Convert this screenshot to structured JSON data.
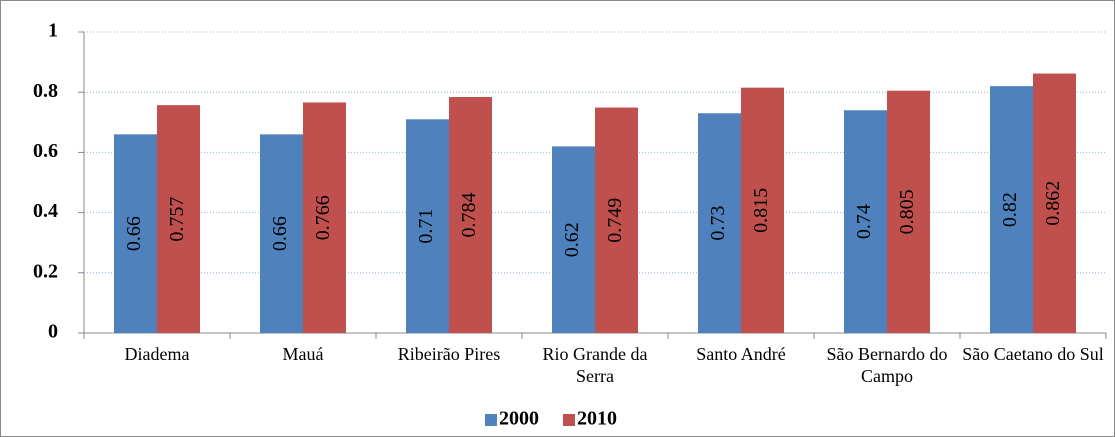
{
  "chart_data": {
    "type": "bar",
    "categories": [
      "Diadema",
      "Mauá",
      "Ribeirão Pires",
      "Rio Grande da Serra",
      "Santo André",
      "São Bernardo do Campo",
      "São Caetano do Sul"
    ],
    "series": [
      {
        "name": "2000",
        "color": "#4f81bd",
        "values": [
          0.66,
          0.66,
          0.71,
          0.62,
          0.73,
          0.74,
          0.82
        ]
      },
      {
        "name": "2010",
        "color": "#c0504d",
        "values": [
          0.757,
          0.766,
          0.784,
          0.749,
          0.815,
          0.805,
          0.862
        ]
      }
    ],
    "ylim": [
      0,
      1
    ],
    "yticks": [
      0,
      0.2,
      0.4,
      0.6,
      0.8,
      1
    ],
    "grid": true,
    "legend": "bottom"
  }
}
